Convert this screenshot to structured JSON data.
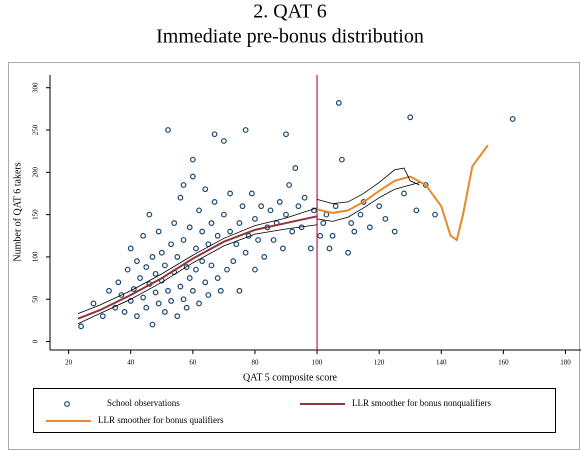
{
  "chart_data": {
    "type": "scatter",
    "title": "2. QAT 6",
    "subtitle": "Immediate pre-bonus distribution",
    "x_label": "QAT 5 composite score",
    "y_label": "Number of QAT 6 takers",
    "xlim": [
      14,
      185
    ],
    "ylim": [
      -10,
      315
    ],
    "xticks": [
      20,
      40,
      60,
      80,
      100,
      120,
      140,
      160,
      180
    ],
    "yticks": [
      0,
      50,
      100,
      150,
      200,
      250,
      300
    ],
    "vline": 100,
    "vline_color": "#c0174e",
    "series": [
      {
        "name": "School observations",
        "type": "scatter",
        "color": "#1a476f",
        "x": [
          24,
          28,
          31,
          33,
          35,
          36,
          37,
          38,
          39,
          40,
          40,
          41,
          42,
          42,
          43,
          44,
          44,
          45,
          45,
          46,
          46,
          47,
          47,
          48,
          48,
          49,
          49,
          50,
          50,
          51,
          51,
          52,
          52,
          53,
          53,
          54,
          54,
          55,
          55,
          56,
          56,
          57,
          57,
          58,
          58,
          59,
          59,
          60,
          60,
          61,
          61,
          62,
          62,
          63,
          63,
          64,
          64,
          65,
          65,
          66,
          66,
          67,
          67,
          68,
          68,
          69,
          70,
          70,
          71,
          72,
          72,
          73,
          74,
          75,
          75,
          76,
          77,
          77,
          78,
          79,
          80,
          80,
          81,
          82,
          83,
          84,
          85,
          86,
          87,
          88,
          89,
          90,
          90,
          91,
          92,
          93,
          94,
          95,
          96,
          98,
          99,
          101,
          102,
          103,
          104,
          105,
          106,
          107,
          108,
          110,
          111,
          112,
          114,
          115,
          117,
          120,
          122,
          125,
          128,
          130,
          132,
          135,
          138,
          163,
          60,
          57
        ],
        "values": [
          18,
          45,
          30,
          60,
          40,
          70,
          55,
          35,
          85,
          48,
          110,
          62,
          30,
          95,
          75,
          52,
          125,
          40,
          88,
          68,
          150,
          20,
          100,
          58,
          80,
          45,
          130,
          72,
          105,
          35,
          90,
          250,
          60,
          115,
          48,
          140,
          82,
          30,
          100,
          65,
          170,
          50,
          120,
          88,
          40,
          135,
          75,
          60,
          195,
          110,
          85,
          45,
          155,
          95,
          130,
          70,
          180,
          55,
          115,
          140,
          90,
          245,
          165,
          75,
          125,
          60,
          150,
          237,
          85,
          130,
          175,
          95,
          115,
          140,
          60,
          160,
          250,
          105,
          125,
          175,
          145,
          85,
          120,
          160,
          100,
          135,
          155,
          120,
          140,
          165,
          110,
          245,
          150,
          185,
          130,
          205,
          160,
          135,
          170,
          110,
          155,
          125,
          140,
          150,
          110,
          125,
          160,
          282,
          215,
          105,
          140,
          130,
          150,
          165,
          135,
          160,
          145,
          130,
          175,
          265,
          155,
          185,
          150,
          263,
          215,
          185
        ]
      },
      {
        "name": "LLR smoother for bonus nonqualifiers",
        "type": "line",
        "color": "#90353b",
        "x": [
          23,
          30,
          40,
          50,
          60,
          70,
          80,
          90,
          100
        ],
        "values": [
          27,
          37,
          55,
          75,
          98,
          118,
          132,
          140,
          148
        ]
      },
      {
        "name": "LLR smoother for bonus qualifiers",
        "type": "line",
        "color": "#e8892a",
        "x": [
          100,
          105,
          110,
          115,
          120,
          125,
          130,
          135,
          140,
          143,
          145,
          147,
          150,
          155
        ],
        "values": [
          156,
          152,
          155,
          165,
          178,
          190,
          195,
          185,
          160,
          125,
          120,
          150,
          207,
          232
        ]
      },
      {
        "type": "line",
        "color": "#000000",
        "x": [
          23,
          30,
          40,
          50,
          60,
          70,
          80,
          90,
          100
        ],
        "values": [
          33,
          43,
          60,
          80,
          102,
          122,
          137,
          146,
          158
        ]
      },
      {
        "type": "line",
        "color": "#000000",
        "x": [
          23,
          30,
          40,
          50,
          60,
          70,
          80,
          90,
          100
        ],
        "values": [
          21,
          33,
          50,
          70,
          93,
          113,
          127,
          133,
          138
        ]
      },
      {
        "type": "line",
        "color": "#000000",
        "x": [
          100,
          105,
          110,
          115,
          120,
          125,
          128,
          130,
          133
        ],
        "values": [
          168,
          163,
          165,
          175,
          188,
          203,
          205,
          190,
          185
        ]
      },
      {
        "type": "line",
        "color": "#000000",
        "x": [
          100,
          105,
          110,
          115,
          120,
          125,
          130,
          133
        ],
        "values": [
          145,
          142,
          147,
          158,
          170,
          180,
          185,
          188
        ]
      }
    ]
  }
}
